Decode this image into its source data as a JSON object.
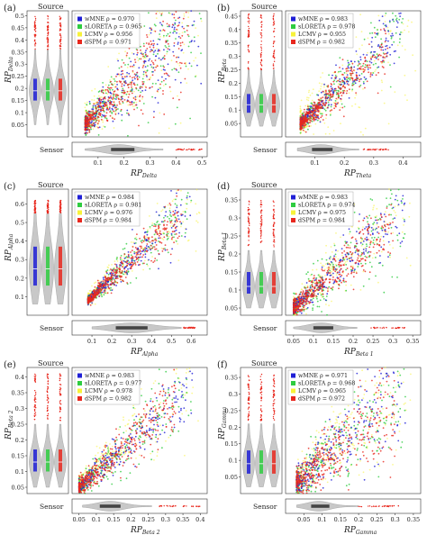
{
  "figure": {
    "source_label": "Source",
    "sensor_label": "Sensor"
  },
  "methods": [
    {
      "name": "wMNE",
      "color": "#1f1fd6"
    },
    {
      "name": "sLORETA",
      "color": "#2ecc40"
    },
    {
      "name": "LCMV",
      "color": "#f7f23a"
    },
    {
      "name": "dSPM",
      "color": "#e8281e"
    }
  ],
  "chart_data": [
    {
      "type": "scatter",
      "panel_label": "(a)",
      "ylabel_main": "RP",
      "ylabel_sub": "Delta",
      "xlabel_main": "RP",
      "xlabel_sub": "Delta",
      "xlim": [
        0.0,
        0.52
      ],
      "ylim": [
        0.0,
        0.52
      ],
      "xticks": [
        0.1,
        0.2,
        0.3,
        0.4,
        0.5
      ],
      "xtick_labels": [
        "0.1",
        "0.2",
        "0.3",
        "0.4",
        "0.5"
      ],
      "yticks": [
        0.05,
        0.1,
        0.15,
        0.2,
        0.25,
        0.3,
        0.35,
        0.4,
        0.45,
        0.5
      ],
      "ytick_labels": [
        "0.05",
        "0.1",
        "0.15",
        "0.2",
        "0.25",
        "0.3",
        "0.35",
        "0.4",
        "0.45",
        "0.5"
      ],
      "legend_position": "top-left",
      "legend": [
        {
          "method": "wMNE",
          "text": "wMNE ρ = 0.970"
        },
        {
          "method": "sLORETA",
          "text": "sLORETA ρ = 0.965"
        },
        {
          "method": "LCMV",
          "text": "LCMV ρ = 0.956"
        },
        {
          "method": "dSPM",
          "text": "dSPM ρ = 0.971"
        }
      ],
      "series": [
        {
          "name": "wMNE",
          "rho": 0.97,
          "x_range": [
            0.05,
            0.5
          ],
          "trend": [
            [
              0.05,
              0.05
            ],
            [
              0.45,
              0.46
            ]
          ]
        },
        {
          "name": "sLORETA",
          "rho": 0.965,
          "x_range": [
            0.05,
            0.5
          ],
          "trend": [
            [
              0.05,
              0.05
            ],
            [
              0.45,
              0.45
            ]
          ]
        },
        {
          "name": "LCMV",
          "rho": 0.956,
          "x_range": [
            0.05,
            0.5
          ],
          "trend": [
            [
              0.05,
              0.06
            ],
            [
              0.45,
              0.47
            ]
          ]
        },
        {
          "name": "dSPM",
          "rho": 0.971,
          "x_range": [
            0.05,
            0.45
          ],
          "trend": [
            [
              0.05,
              0.05
            ],
            [
              0.45,
              0.44
            ]
          ]
        }
      ],
      "source_violin": {
        "median": 0.19,
        "box": [
          0.15,
          0.24
        ],
        "whisker": [
          0.05,
          0.36
        ],
        "outliers_range": [
          0.36,
          0.5
        ]
      },
      "sensor_violin": {
        "median": 0.18,
        "box": [
          0.15,
          0.24
        ],
        "whisker": [
          0.05,
          0.35
        ],
        "outliers_range": [
          0.4,
          0.5
        ]
      }
    },
    {
      "type": "scatter",
      "panel_label": "(b)",
      "ylabel_main": "RP",
      "ylabel_sub": "Beta",
      "xlabel_main": "RP",
      "xlabel_sub": "Theta",
      "xlim": [
        0.0,
        0.46
      ],
      "ylim": [
        0.0,
        0.47
      ],
      "xticks": [
        0.1,
        0.2,
        0.3,
        0.4
      ],
      "xtick_labels": [
        "0.1",
        "0.2",
        "0.3",
        "0.4"
      ],
      "yticks": [
        0.05,
        0.1,
        0.15,
        0.2,
        0.25,
        0.3,
        0.35,
        0.4,
        0.45
      ],
      "ytick_labels": [
        "0.05",
        "0.1",
        "0.15",
        "0.2",
        "0.25",
        "0.3",
        "0.35",
        "0.4",
        "0.45"
      ],
      "legend_position": "top-left",
      "legend": [
        {
          "method": "wMNE",
          "text": "wMNE ρ = 0.983"
        },
        {
          "method": "sLORETA",
          "text": "sLORETA ρ = 0.978"
        },
        {
          "method": "LCMV",
          "text": "LCMV ρ = 0.955"
        },
        {
          "method": "dSPM",
          "text": "dSPM ρ = 0.982"
        }
      ],
      "series": [
        {
          "name": "wMNE",
          "rho": 0.983,
          "x_range": [
            0.05,
            0.4
          ],
          "trend": [
            [
              0.05,
              0.05
            ],
            [
              0.4,
              0.41
            ]
          ]
        },
        {
          "name": "sLORETA",
          "rho": 0.978,
          "x_range": [
            0.05,
            0.4
          ],
          "trend": [
            [
              0.05,
              0.05
            ],
            [
              0.4,
              0.4
            ]
          ]
        },
        {
          "name": "LCMV",
          "rho": 0.955,
          "x_range": [
            0.05,
            0.45
          ],
          "trend": [
            [
              0.05,
              0.06
            ],
            [
              0.45,
              0.46
            ]
          ]
        },
        {
          "name": "dSPM",
          "rho": 0.982,
          "x_range": [
            0.05,
            0.35
          ],
          "trend": [
            [
              0.05,
              0.05
            ],
            [
              0.35,
              0.34
            ]
          ]
        }
      ],
      "source_violin": {
        "median": 0.12,
        "box": [
          0.09,
          0.16
        ],
        "whisker": [
          0.04,
          0.25
        ],
        "outliers_range": [
          0.25,
          0.46
        ]
      },
      "sensor_violin": {
        "median": 0.12,
        "box": [
          0.09,
          0.16
        ],
        "whisker": [
          0.04,
          0.25
        ],
        "outliers_range": [
          0.26,
          0.35
        ]
      }
    },
    {
      "type": "scatter",
      "panel_label": "(c)",
      "ylabel_main": "RP",
      "ylabel_sub": "Alpha",
      "xlabel_main": "RP",
      "xlabel_sub": "Alpha",
      "xlim": [
        0.0,
        0.68
      ],
      "ylim": [
        0.0,
        0.68
      ],
      "xticks": [
        0.1,
        0.2,
        0.3,
        0.4,
        0.5,
        0.6
      ],
      "xtick_labels": [
        "0.1",
        "0.2",
        "0.3",
        "0.4",
        "0.5",
        "0.6"
      ],
      "yticks": [
        0.1,
        0.2,
        0.3,
        0.4,
        0.5,
        0.6
      ],
      "ytick_labels": [
        "0.1",
        "0.2",
        "0.3",
        "0.4",
        "0.5",
        "0.6"
      ],
      "legend_position": "top-left",
      "legend": [
        {
          "method": "wMNE",
          "text": "wMNE ρ = 0.984"
        },
        {
          "method": "sLORETA",
          "text": "sLORETA ρ = 0.981"
        },
        {
          "method": "LCMV",
          "text": "LCMV ρ = 0.976"
        },
        {
          "method": "dSPM",
          "text": "dSPM ρ = 0.984"
        }
      ],
      "series": [
        {
          "name": "wMNE",
          "rho": 0.984,
          "x_range": [
            0.08,
            0.6
          ],
          "trend": [
            [
              0.08,
              0.08
            ],
            [
              0.6,
              0.6
            ]
          ]
        },
        {
          "name": "sLORETA",
          "rho": 0.981,
          "x_range": [
            0.08,
            0.6
          ],
          "trend": [
            [
              0.08,
              0.08
            ],
            [
              0.6,
              0.6
            ]
          ]
        },
        {
          "name": "LCMV",
          "rho": 0.976,
          "x_range": [
            0.08,
            0.65
          ],
          "trend": [
            [
              0.08,
              0.09
            ],
            [
              0.65,
              0.65
            ]
          ]
        },
        {
          "name": "dSPM",
          "rho": 0.984,
          "x_range": [
            0.08,
            0.55
          ],
          "trend": [
            [
              0.08,
              0.08
            ],
            [
              0.55,
              0.54
            ]
          ]
        }
      ],
      "source_violin": {
        "median": 0.25,
        "box": [
          0.16,
          0.37
        ],
        "whisker": [
          0.06,
          0.55
        ],
        "outliers_range": [
          0.55,
          0.62
        ]
      },
      "sensor_violin": {
        "median": 0.3,
        "box": [
          0.22,
          0.38
        ],
        "whisker": [
          0.1,
          0.55
        ],
        "outliers_range": [
          0.56,
          0.62
        ]
      }
    },
    {
      "type": "scatter",
      "panel_label": "(d)",
      "ylabel_main": "RP",
      "ylabel_sub": "Beta 1",
      "xlabel_main": "RP",
      "xlabel_sub": "Beta 1",
      "xlim": [
        0.03,
        0.37
      ],
      "ylim": [
        0.03,
        0.38
      ],
      "xticks": [
        0.05,
        0.1,
        0.15,
        0.2,
        0.25,
        0.3,
        0.35
      ],
      "xtick_labels": [
        "0.05",
        "0.1",
        "0.15",
        "0.2",
        "0.25",
        "0.3",
        "0.35"
      ],
      "yticks": [
        0.05,
        0.1,
        0.15,
        0.2,
        0.25,
        0.3,
        0.35
      ],
      "ytick_labels": [
        "0.05",
        "0.1",
        "0.15",
        "0.2",
        "0.25",
        "0.3",
        "0.35"
      ],
      "legend_position": "top-left",
      "legend": [
        {
          "method": "wMNE",
          "text": "wMNE ρ = 0.983"
        },
        {
          "method": "sLORETA",
          "text": "sLORETA ρ = 0.974"
        },
        {
          "method": "LCMV",
          "text": "LCMV ρ = 0.975"
        },
        {
          "method": "dSPM",
          "text": "dSPM ρ = 0.984"
        }
      ],
      "series": [
        {
          "name": "wMNE",
          "rho": 0.983,
          "x_range": [
            0.05,
            0.33
          ],
          "trend": [
            [
              0.05,
              0.05
            ],
            [
              0.33,
              0.33
            ]
          ]
        },
        {
          "name": "sLORETA",
          "rho": 0.974,
          "x_range": [
            0.05,
            0.33
          ],
          "trend": [
            [
              0.05,
              0.05
            ],
            [
              0.33,
              0.32
            ]
          ]
        },
        {
          "name": "LCMV",
          "rho": 0.975,
          "x_range": [
            0.05,
            0.35
          ],
          "trend": [
            [
              0.05,
              0.05
            ],
            [
              0.35,
              0.36
            ]
          ]
        },
        {
          "name": "dSPM",
          "rho": 0.984,
          "x_range": [
            0.05,
            0.3
          ],
          "trend": [
            [
              0.05,
              0.05
            ],
            [
              0.3,
              0.29
            ]
          ]
        }
      ],
      "source_violin": {
        "median": 0.11,
        "box": [
          0.09,
          0.15
        ],
        "whisker": [
          0.05,
          0.21
        ],
        "outliers_range": [
          0.22,
          0.35
        ]
      },
      "sensor_violin": {
        "median": 0.12,
        "box": [
          0.1,
          0.15
        ],
        "whisker": [
          0.05,
          0.21
        ],
        "outliers_range": [
          0.24,
          0.33
        ]
      }
    },
    {
      "type": "scatter",
      "panel_label": "(e)",
      "ylabel_main": "RP",
      "ylabel_sub": "Beta 2",
      "xlabel_main": "RP",
      "xlabel_sub": "Beta 2",
      "xlim": [
        0.03,
        0.42
      ],
      "ylim": [
        0.03,
        0.43
      ],
      "xticks": [
        0.05,
        0.1,
        0.15,
        0.2,
        0.25,
        0.3,
        0.35,
        0.4
      ],
      "xtick_labels": [
        "0.05",
        "0.1",
        "0.15",
        "0.2",
        "0.25",
        "0.3",
        "0.35",
        "0.4"
      ],
      "yticks": [
        0.05,
        0.1,
        0.15,
        0.2,
        0.25,
        0.3,
        0.35,
        0.4
      ],
      "ytick_labels": [
        "0.05",
        "0.1",
        "0.15",
        "0.2",
        "0.25",
        "0.3",
        "0.35",
        "0.4"
      ],
      "legend_position": "top-left",
      "legend": [
        {
          "method": "wMNE",
          "text": "wMNE ρ = 0.983"
        },
        {
          "method": "sLORETA",
          "text": "sLORETA ρ = 0.977"
        },
        {
          "method": "LCMV",
          "text": "LCMV ρ = 0.978"
        },
        {
          "method": "dSPM",
          "text": "dSPM ρ = 0.982"
        }
      ],
      "series": [
        {
          "name": "wMNE",
          "rho": 0.983,
          "x_range": [
            0.05,
            0.38
          ],
          "trend": [
            [
              0.05,
              0.05
            ],
            [
              0.38,
              0.38
            ]
          ]
        },
        {
          "name": "sLORETA",
          "rho": 0.977,
          "x_range": [
            0.05,
            0.38
          ],
          "trend": [
            [
              0.05,
              0.05
            ],
            [
              0.38,
              0.37
            ]
          ]
        },
        {
          "name": "LCMV",
          "rho": 0.978,
          "x_range": [
            0.05,
            0.4
          ],
          "trend": [
            [
              0.05,
              0.06
            ],
            [
              0.4,
              0.41
            ]
          ]
        },
        {
          "name": "dSPM",
          "rho": 0.982,
          "x_range": [
            0.05,
            0.33
          ],
          "trend": [
            [
              0.05,
              0.05
            ],
            [
              0.33,
              0.32
            ]
          ]
        }
      ],
      "source_violin": {
        "median": 0.13,
        "box": [
          0.1,
          0.17
        ],
        "whisker": [
          0.05,
          0.25
        ],
        "outliers_range": [
          0.26,
          0.41
        ]
      },
      "sensor_violin": {
        "median": 0.14,
        "box": [
          0.11,
          0.17
        ],
        "whisker": [
          0.06,
          0.26
        ],
        "outliers_range": [
          0.28,
          0.4
        ]
      }
    },
    {
      "type": "scatter",
      "panel_label": "(f)",
      "ylabel_main": "RP",
      "ylabel_sub": "Gamma",
      "xlabel_main": "RP",
      "xlabel_sub": "Gamma",
      "xlim": [
        0.0,
        0.37
      ],
      "ylim": [
        0.0,
        0.38
      ],
      "xticks": [
        0.05,
        0.1,
        0.15,
        0.2,
        0.25,
        0.3,
        0.35
      ],
      "xtick_labels": [
        "0.05",
        "0.1",
        "0.15",
        "0.2",
        "0.25",
        "0.3",
        "0.35"
      ],
      "yticks": [
        0.05,
        0.1,
        0.15,
        0.2,
        0.25,
        0.3,
        0.35
      ],
      "ytick_labels": [
        "0.05",
        "0.1",
        "0.15",
        "0.2",
        "0.25",
        "0.3",
        "0.35"
      ],
      "legend_position": "top-left",
      "legend": [
        {
          "method": "wMNE",
          "text": "wMNE ρ = 0.971"
        },
        {
          "method": "sLORETA",
          "text": "sLORETA ρ = 0.968"
        },
        {
          "method": "LCMV",
          "text": "LCMV ρ = 0.965"
        },
        {
          "method": "dSPM",
          "text": "dSPM ρ = 0.972"
        }
      ],
      "series": [
        {
          "name": "wMNE",
          "rho": 0.971,
          "x_range": [
            0.03,
            0.33
          ],
          "trend": [
            [
              0.03,
              0.03
            ],
            [
              0.33,
              0.34
            ]
          ]
        },
        {
          "name": "sLORETA",
          "rho": 0.968,
          "x_range": [
            0.03,
            0.33
          ],
          "trend": [
            [
              0.03,
              0.03
            ],
            [
              0.33,
              0.33
            ]
          ]
        },
        {
          "name": "LCMV",
          "rho": 0.965,
          "x_range": [
            0.03,
            0.35
          ],
          "trend": [
            [
              0.03,
              0.04
            ],
            [
              0.35,
              0.36
            ]
          ]
        },
        {
          "name": "dSPM",
          "rho": 0.972,
          "x_range": [
            0.03,
            0.3
          ],
          "trend": [
            [
              0.03,
              0.03
            ],
            [
              0.3,
              0.29
            ]
          ]
        }
      ],
      "source_violin": {
        "median": 0.09,
        "box": [
          0.06,
          0.13
        ],
        "whisker": [
          0.02,
          0.21
        ],
        "outliers_range": [
          0.22,
          0.36
        ]
      },
      "sensor_violin": {
        "median": 0.09,
        "box": [
          0.07,
          0.12
        ],
        "whisker": [
          0.03,
          0.2
        ],
        "outliers_range": [
          0.2,
          0.31
        ]
      }
    }
  ]
}
